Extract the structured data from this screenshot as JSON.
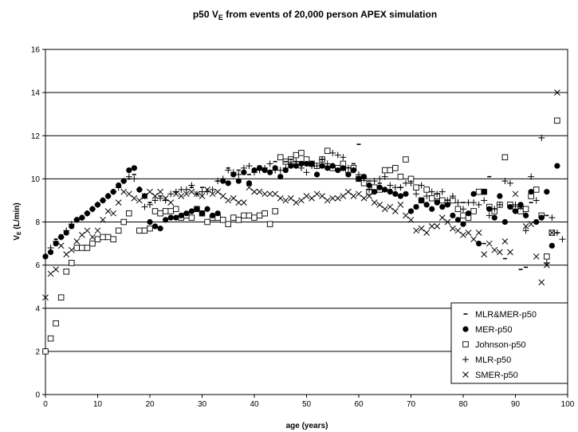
{
  "chart_data": {
    "type": "scatter",
    "title": {
      "prefix": "p50 V",
      "sub": "E",
      "suffix": " from events of 20,000 person APEX simulation"
    },
    "xlabel": "age (years)",
    "ylabel": {
      "prefix": "V",
      "sub": "E",
      "suffix": " (L/min)"
    },
    "xlim": [
      0,
      100
    ],
    "ylim": [
      0,
      16
    ],
    "xticks": [
      "0",
      "10",
      "20",
      "30",
      "40",
      "50",
      "60",
      "70",
      "80",
      "90",
      "100"
    ],
    "yticks": [
      "0",
      "2",
      "4",
      "6",
      "8",
      "10",
      "12",
      "14",
      "16"
    ],
    "grid": "horizontal",
    "legend_position": "bottom-right",
    "series": [
      {
        "name": "MLR&MER-p50",
        "marker": "dash",
        "x": [
          1,
          2,
          3,
          4,
          5,
          6,
          7,
          8,
          9,
          10,
          12,
          14,
          16,
          17,
          20,
          22,
          25,
          28,
          30,
          33,
          35,
          37,
          39,
          41,
          42,
          44,
          46,
          47,
          48,
          49,
          51,
          53,
          55,
          57,
          59,
          60,
          62,
          64,
          66,
          68,
          72,
          75,
          80,
          84,
          85,
          88,
          91,
          92,
          93,
          96,
          98
        ],
        "y": [
          6.6,
          7.2,
          7.4,
          7.5,
          7.8,
          8.1,
          8.2,
          8.4,
          8.6,
          8.8,
          9.2,
          9.6,
          10.0,
          10.2,
          8.9,
          9.2,
          9.4,
          9.6,
          9.6,
          9.9,
          10.5,
          10.4,
          10.2,
          10.6,
          10.5,
          10.8,
          10.8,
          10.9,
          10.8,
          10.8,
          10.7,
          10.9,
          10.6,
          10.4,
          10.7,
          11.6,
          9.9,
          9.8,
          9.5,
          9.6,
          9.1,
          9.0,
          8.9,
          7.0,
          10.1,
          6.3,
          5.8,
          5.9,
          8.9,
          8.3,
          7.5
        ]
      },
      {
        "name": "MER-p50",
        "marker": "dot",
        "x": [
          0,
          1,
          2,
          3,
          4,
          5,
          6,
          7,
          8,
          9,
          10,
          11,
          12,
          13,
          14,
          15,
          16,
          17,
          18,
          19,
          20,
          21,
          22,
          23,
          24,
          25,
          26,
          27,
          28,
          29,
          30,
          31,
          32,
          33,
          34,
          35,
          36,
          37,
          38,
          39,
          40,
          41,
          42,
          43,
          44,
          45,
          46,
          47,
          48,
          49,
          50,
          51,
          52,
          53,
          54,
          55,
          56,
          57,
          58,
          59,
          60,
          61,
          62,
          63,
          64,
          65,
          66,
          67,
          68,
          69,
          70,
          71,
          72,
          73,
          74,
          75,
          76,
          77,
          78,
          79,
          80,
          81,
          82,
          83,
          84,
          85,
          86,
          87,
          88,
          89,
          90,
          91,
          92,
          93,
          94,
          95,
          96,
          97,
          98
        ],
        "y": [
          6.4,
          6.6,
          7.0,
          7.3,
          7.5,
          7.8,
          8.1,
          8.2,
          8.4,
          8.6,
          8.8,
          9.0,
          9.2,
          9.4,
          9.7,
          9.9,
          10.4,
          10.5,
          9.5,
          9.2,
          8.0,
          7.8,
          7.7,
          8.1,
          8.2,
          8.2,
          8.3,
          8.4,
          8.5,
          8.6,
          8.4,
          8.6,
          8.3,
          8.4,
          9.9,
          9.8,
          10.2,
          9.9,
          10.3,
          9.8,
          10.4,
          10.5,
          10.4,
          10.3,
          10.5,
          10.1,
          10.4,
          10.6,
          10.6,
          10.7,
          10.7,
          10.7,
          10.2,
          10.6,
          10.5,
          10.6,
          10.4,
          10.5,
          10.2,
          10.4,
          10.0,
          10.1,
          9.7,
          9.4,
          9.6,
          9.5,
          9.4,
          9.3,
          9.2,
          9.3,
          8.5,
          8.7,
          9.0,
          8.8,
          8.6,
          8.9,
          8.7,
          8.8,
          8.3,
          8.1,
          7.9,
          8.4,
          9.3,
          7.0,
          9.4,
          8.6,
          8.2,
          9.2,
          8.0,
          8.7,
          8.5,
          8.8,
          8.3,
          9.4,
          8.0,
          8.2,
          9.4,
          6.9,
          10.6
        ]
      },
      {
        "name": "Johnson-p50",
        "marker": "square",
        "x": [
          0,
          1,
          2,
          3,
          4,
          5,
          6,
          7,
          8,
          9,
          10,
          11,
          12,
          13,
          14,
          15,
          16,
          18,
          19,
          20,
          21,
          22,
          23,
          24,
          25,
          26,
          27,
          28,
          29,
          30,
          31,
          32,
          33,
          34,
          35,
          36,
          37,
          38,
          39,
          40,
          41,
          42,
          43,
          44,
          45,
          46,
          47,
          48,
          49,
          50,
          51,
          52,
          53,
          54,
          55,
          56,
          57,
          58,
          59,
          60,
          61,
          62,
          63,
          64,
          65,
          66,
          67,
          68,
          69,
          70,
          71,
          72,
          73,
          74,
          75,
          76,
          77,
          78,
          79,
          80,
          81,
          82,
          83,
          84,
          85,
          86,
          87,
          88,
          89,
          90,
          91,
          92,
          93,
          94,
          95,
          96,
          97,
          98
        ],
        "y": [
          2.0,
          2.6,
          3.3,
          4.5,
          5.7,
          6.1,
          6.8,
          6.8,
          6.8,
          7.0,
          7.2,
          7.3,
          7.3,
          7.2,
          7.6,
          8.0,
          8.4,
          7.6,
          7.6,
          7.7,
          8.5,
          8.4,
          8.5,
          8.5,
          8.6,
          8.2,
          8.3,
          8.2,
          8.6,
          8.4,
          8.0,
          8.2,
          8.2,
          8.1,
          7.9,
          8.2,
          8.1,
          8.3,
          8.3,
          8.2,
          8.3,
          8.4,
          7.9,
          8.5,
          11.0,
          10.8,
          10.9,
          11.1,
          11.2,
          10.9,
          10.7,
          10.6,
          10.9,
          11.3,
          10.5,
          10.5,
          10.7,
          10.4,
          10.5,
          10.0,
          9.8,
          9.4,
          9.6,
          9.5,
          10.4,
          10.4,
          10.5,
          10.1,
          10.9,
          10.0,
          9.6,
          9.0,
          9.5,
          9.1,
          9.2,
          9.0,
          8.9,
          9.0,
          8.6,
          8.3,
          8.2,
          8.5,
          9.4,
          9.4,
          8.7,
          8.5,
          8.8,
          11.0,
          8.8,
          8.6,
          8.5,
          8.6,
          9.2,
          9.5,
          8.3,
          6.4,
          7.5,
          12.7
        ]
      },
      {
        "name": "MLR-p50",
        "marker": "plus",
        "x": [
          1,
          2,
          3,
          4,
          5,
          6,
          7,
          8,
          9,
          10,
          11,
          12,
          13,
          14,
          15,
          16,
          17,
          18,
          19,
          20,
          21,
          22,
          23,
          24,
          25,
          26,
          27,
          28,
          29,
          30,
          31,
          32,
          33,
          34,
          35,
          36,
          37,
          38,
          39,
          40,
          41,
          42,
          43,
          44,
          45,
          46,
          47,
          48,
          49,
          50,
          51,
          52,
          53,
          54,
          55,
          56,
          57,
          58,
          59,
          60,
          61,
          62,
          63,
          64,
          65,
          66,
          67,
          68,
          69,
          70,
          71,
          72,
          73,
          74,
          75,
          76,
          77,
          78,
          79,
          80,
          81,
          82,
          83,
          84,
          85,
          86,
          87,
          88,
          89,
          90,
          91,
          92,
          93,
          94,
          95,
          96,
          97,
          98,
          99
        ],
        "y": [
          6.8,
          7.1,
          7.3,
          7.6,
          7.9,
          8.1,
          8.2,
          8.4,
          8.6,
          8.8,
          9.0,
          9.2,
          9.4,
          9.6,
          9.9,
          10.1,
          10.0,
          9.5,
          8.7,
          8.8,
          9.0,
          9.1,
          9.0,
          9.3,
          9.4,
          9.5,
          9.5,
          9.7,
          9.3,
          9.4,
          9.4,
          9.5,
          9.9,
          10.0,
          10.4,
          10.3,
          10.2,
          10.5,
          10.6,
          10.3,
          10.4,
          10.5,
          10.7,
          10.4,
          10.4,
          10.5,
          10.7,
          10.8,
          10.5,
          10.3,
          10.6,
          10.6,
          10.9,
          10.7,
          11.2,
          11.1,
          11.0,
          10.5,
          10.4,
          10.2,
          10.0,
          9.5,
          9.9,
          10.0,
          10.1,
          9.7,
          9.6,
          9.6,
          9.8,
          9.8,
          9.3,
          9.7,
          9.2,
          9.4,
          9.3,
          9.4,
          9.0,
          9.2,
          8.9,
          8.6,
          8.9,
          8.9,
          8.8,
          9.0,
          8.3,
          8.6,
          8.8,
          9.9,
          9.8,
          8.8,
          8.7,
          7.6,
          10.1,
          9.0,
          11.9,
          6.1,
          8.2,
          7.5,
          7.2
        ]
      },
      {
        "name": "SMER-p50",
        "marker": "x",
        "x": [
          0,
          1,
          2,
          3,
          4,
          5,
          6,
          7,
          8,
          9,
          10,
          11,
          12,
          13,
          14,
          15,
          16,
          17,
          18,
          19,
          20,
          21,
          22,
          23,
          24,
          25,
          26,
          27,
          28,
          29,
          30,
          31,
          32,
          33,
          34,
          35,
          36,
          37,
          38,
          39,
          40,
          41,
          42,
          43,
          44,
          45,
          46,
          47,
          48,
          49,
          50,
          51,
          52,
          53,
          54,
          55,
          56,
          57,
          58,
          59,
          60,
          61,
          62,
          63,
          64,
          65,
          66,
          67,
          68,
          69,
          70,
          71,
          72,
          73,
          74,
          75,
          76,
          77,
          78,
          79,
          80,
          81,
          82,
          83,
          84,
          85,
          86,
          87,
          88,
          89,
          90,
          91,
          92,
          93,
          94,
          95,
          96,
          97,
          98
        ],
        "y": [
          4.5,
          5.6,
          5.8,
          6.9,
          6.5,
          6.7,
          7.1,
          7.4,
          7.6,
          7.3,
          7.6,
          8.1,
          8.5,
          8.4,
          8.9,
          9.4,
          9.3,
          9.1,
          9.0,
          9.2,
          9.4,
          9.2,
          9.4,
          9.1,
          8.9,
          9.3,
          9.2,
          9.3,
          9.4,
          9.3,
          9.2,
          9.5,
          9.3,
          9.4,
          9.2,
          9.0,
          9.1,
          8.9,
          8.9,
          9.6,
          9.4,
          9.4,
          9.3,
          9.3,
          9.3,
          9.1,
          9.0,
          9.1,
          8.9,
          9.0,
          9.2,
          9.1,
          9.3,
          9.2,
          9.0,
          9.1,
          9.1,
          9.2,
          9.4,
          9.2,
          9.3,
          9.1,
          9.2,
          8.9,
          8.8,
          8.6,
          8.7,
          8.5,
          8.8,
          8.3,
          8.1,
          7.6,
          7.7,
          7.5,
          7.8,
          7.8,
          8.2,
          8.0,
          7.7,
          7.6,
          7.4,
          7.5,
          7.2,
          7.5,
          6.5,
          7.0,
          6.7,
          6.6,
          7.1,
          6.6,
          9.3,
          8.7,
          7.8,
          7.9,
          6.4,
          5.2,
          6.0,
          7.5,
          14.0
        ]
      }
    ]
  }
}
